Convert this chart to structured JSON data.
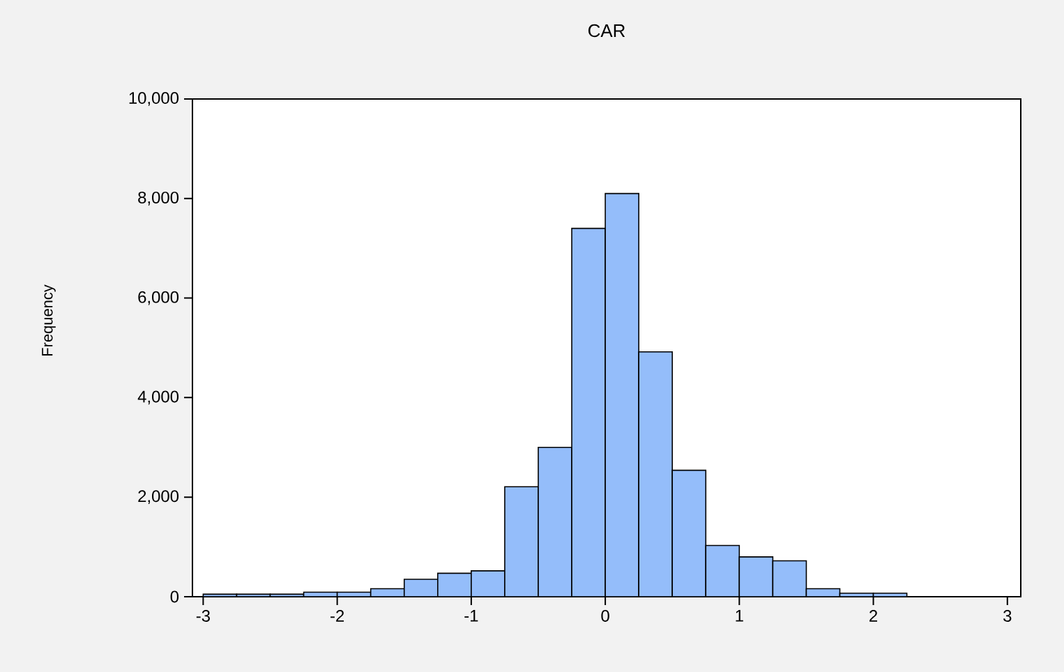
{
  "chart_data": {
    "type": "histogram",
    "title": "CAR",
    "ylabel": "Frequency",
    "bins": [
      -3,
      -2.75,
      -2.5,
      -2.25,
      -2,
      -1.75,
      -1.5,
      -1.25,
      -1,
      -0.75,
      -0.5,
      -0.25,
      0,
      0.25,
      0.5,
      0.75,
      1,
      1.25,
      1.5,
      1.75,
      2,
      2.25
    ],
    "values": [
      50,
      50,
      50,
      90,
      90,
      160,
      350,
      470,
      520,
      2210,
      3000,
      7400,
      8100,
      4920,
      2540,
      1030,
      800,
      720,
      160,
      70,
      70
    ],
    "color": "#94bdfa",
    "xlim": [
      -3.08,
      3.1
    ],
    "ylim": [
      0,
      10000
    ],
    "xticks": [
      -3,
      -2,
      -1,
      0,
      1,
      2,
      3
    ],
    "yticks": [
      0,
      {
        "value": 2000,
        "label": "2,000"
      },
      {
        "value": 4000,
        "label": "4,000"
      },
      {
        "value": 6000,
        "label": "6,000"
      },
      {
        "value": 8000,
        "label": "8,000"
      },
      {
        "value": 10000,
        "label": "10,000"
      }
    ],
    "grid": false
  }
}
